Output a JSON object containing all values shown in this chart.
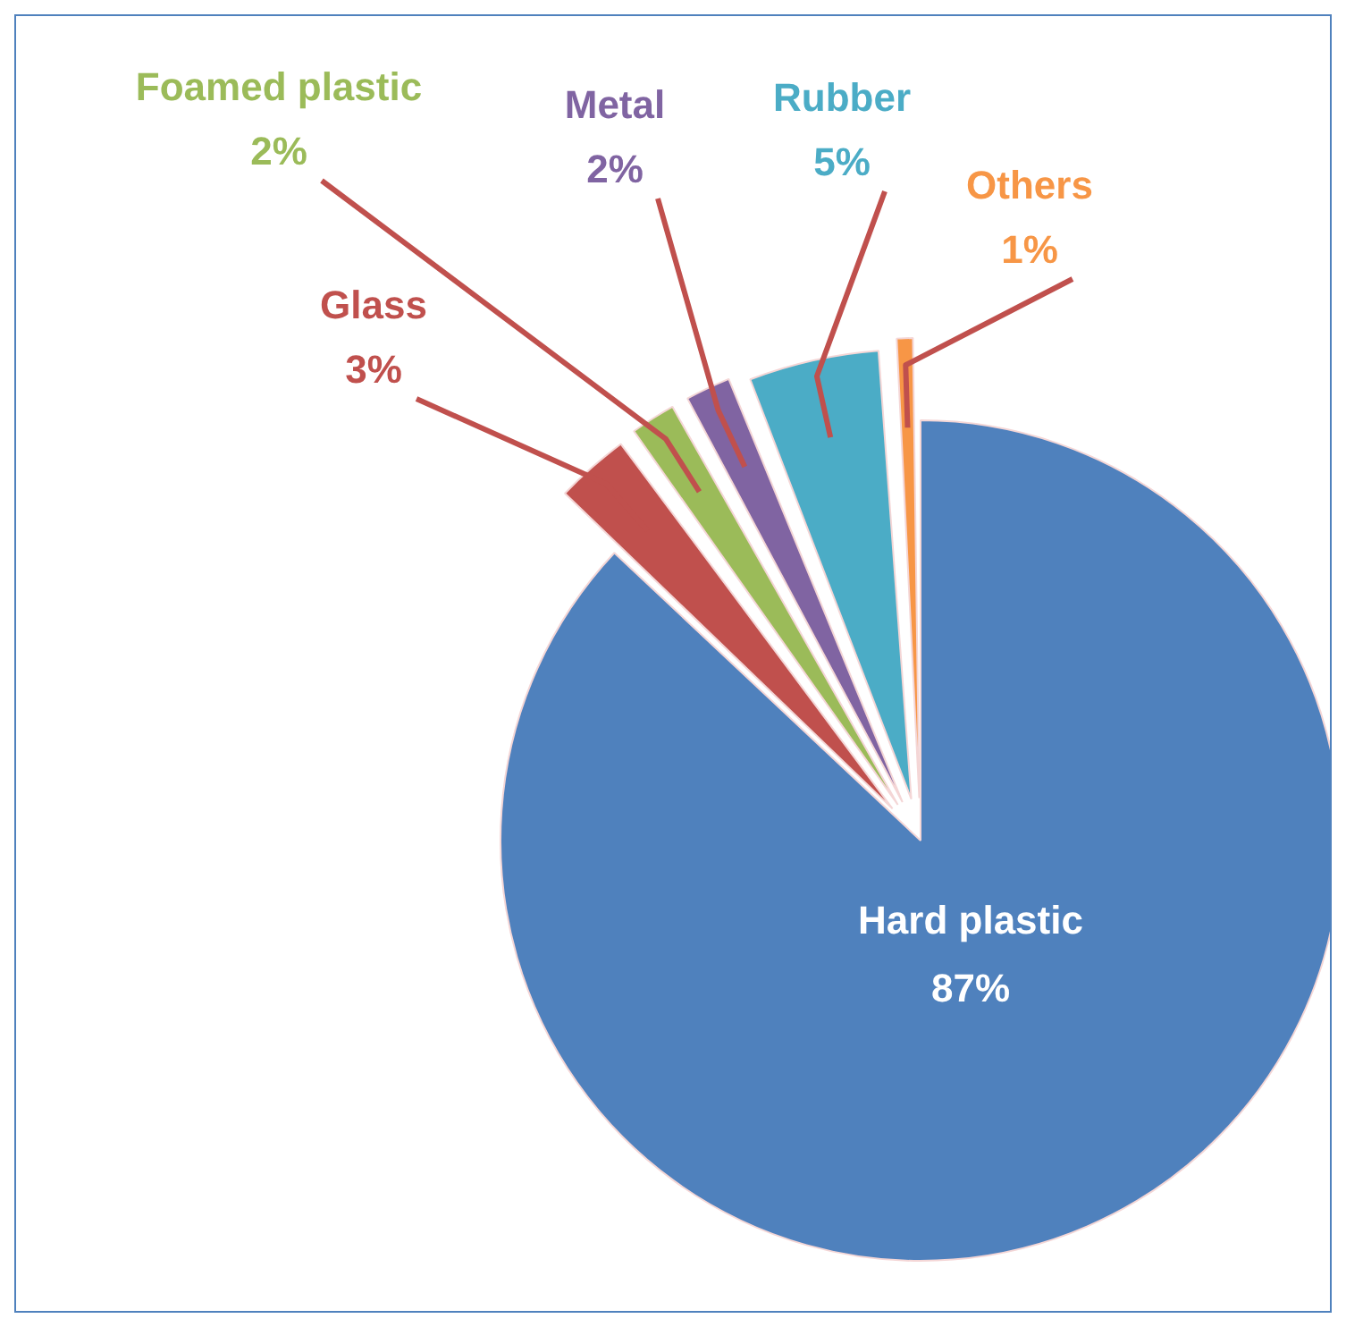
{
  "chart_data": {
    "type": "pie",
    "categories": [
      "Hard plastic",
      "Glass",
      "Foamed plastic",
      "Metal",
      "Rubber",
      "Others"
    ],
    "values": [
      87,
      3,
      2,
      2,
      5,
      1
    ],
    "colors": [
      "#4f81bd",
      "#c0504d",
      "#9bbb59",
      "#8064a2",
      "#4bacc6",
      "#f79646"
    ],
    "value_labels": [
      "87%",
      "3%",
      "2%",
      "2%",
      "5%",
      "1%"
    ],
    "legend": false
  }
}
